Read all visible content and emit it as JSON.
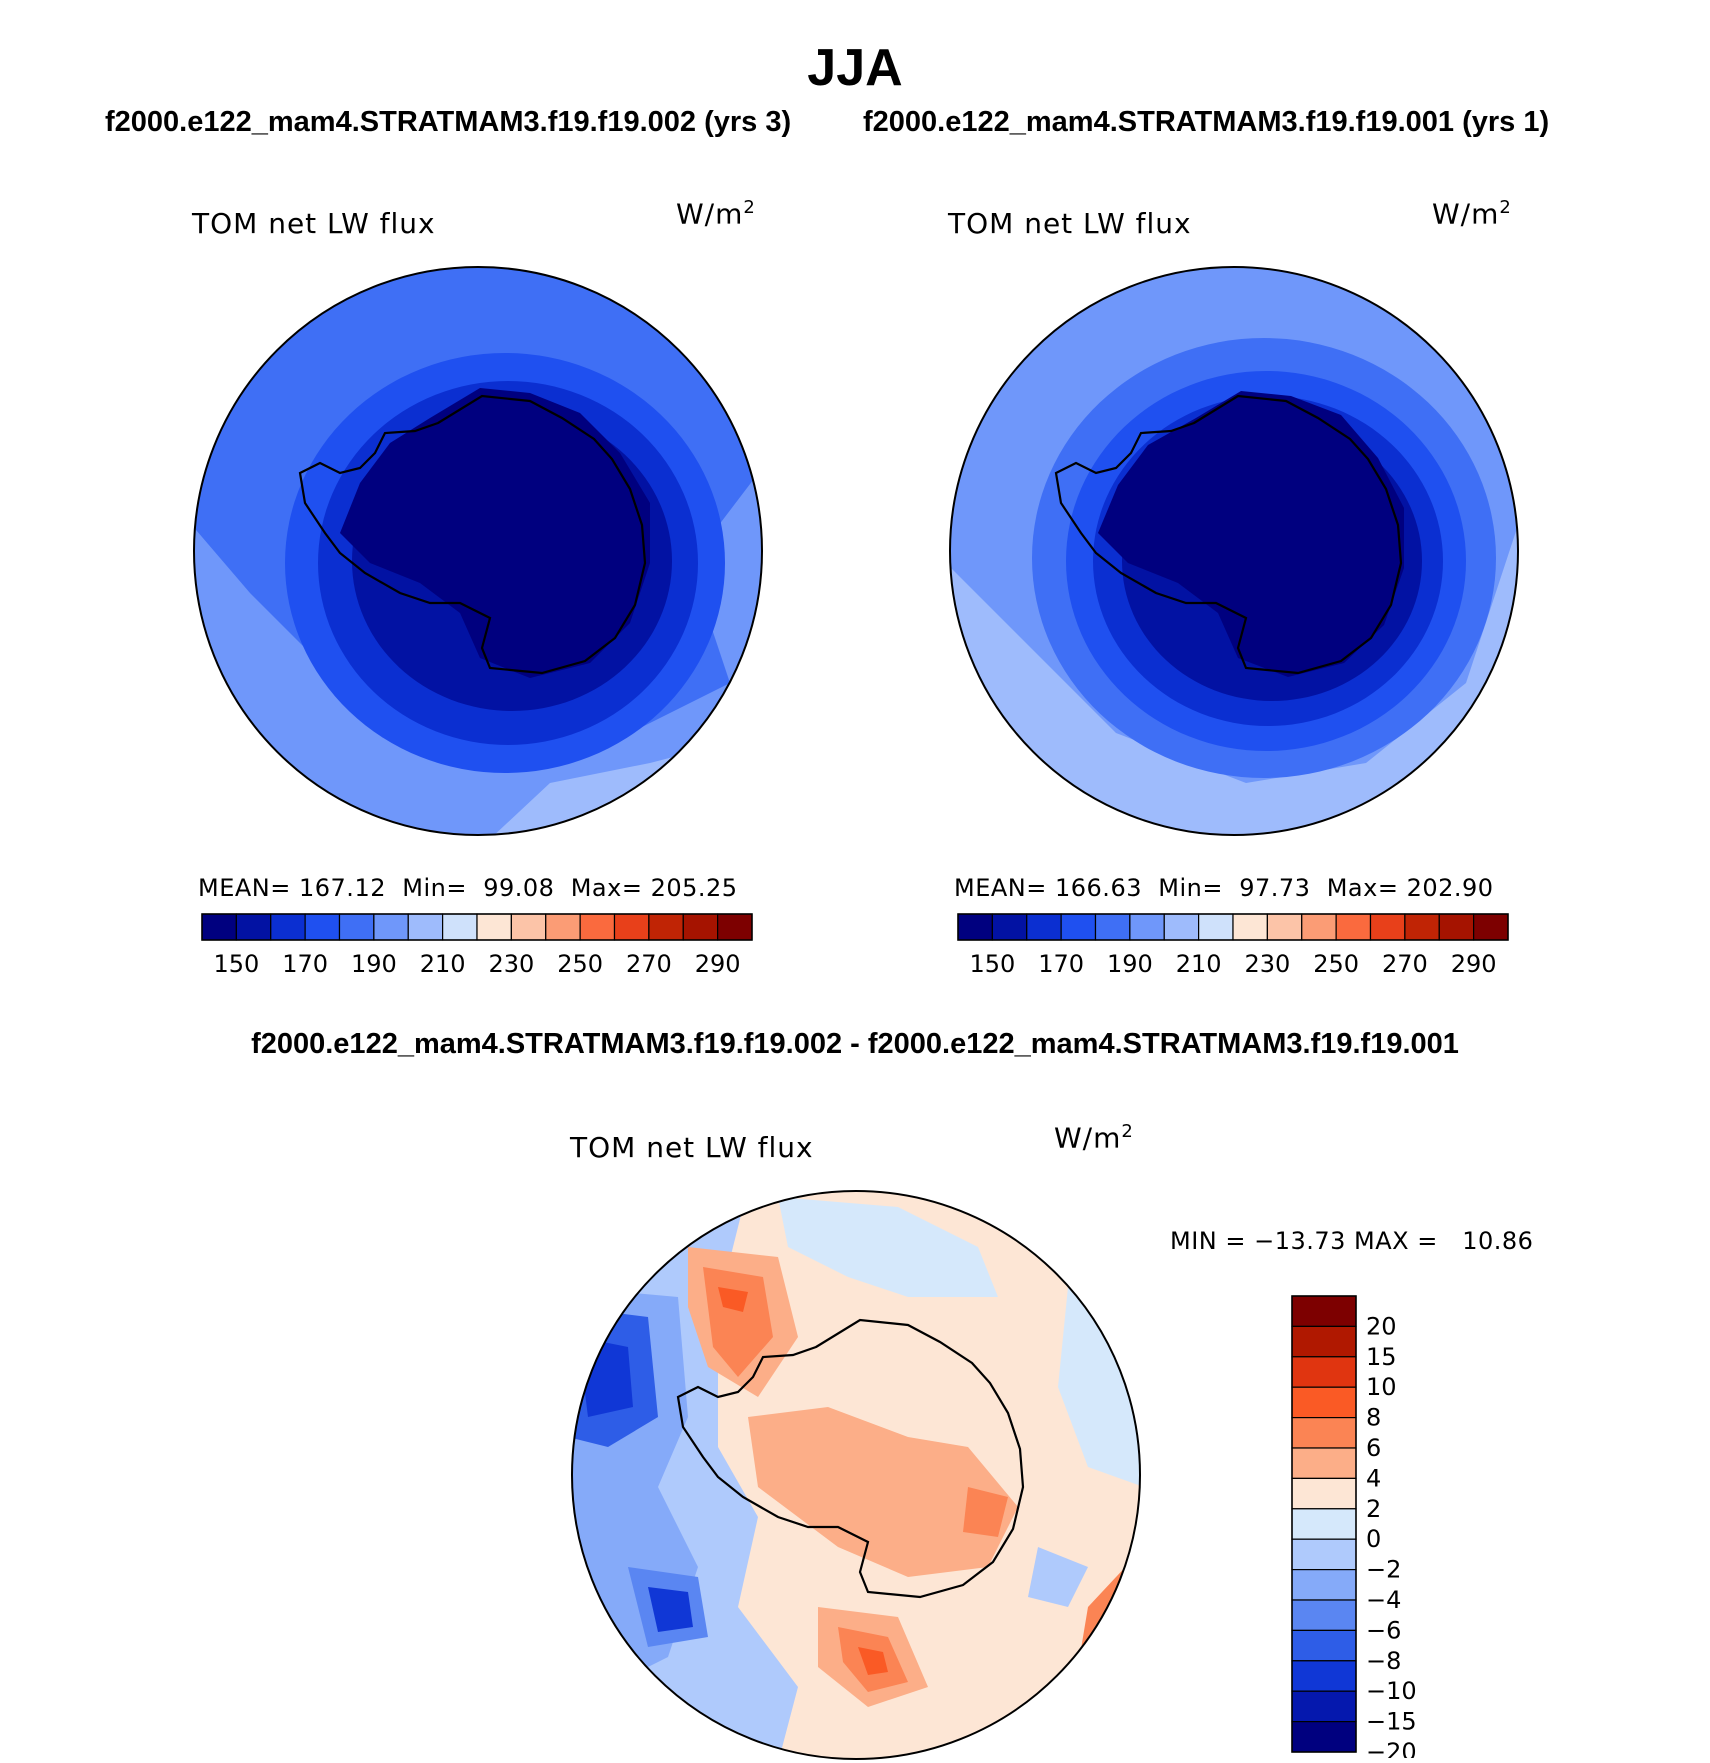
{
  "season": "JJA",
  "case_titles": {
    "left": "f2000.e122_mam4.STRATMAM3.f19.f19.002 (yrs 3)",
    "right": "f2000.e122_mam4.STRATMAM3.f19.f19.001 (yrs 1)"
  },
  "diff_title": "f2000.e122_mam4.STRATMAM3.f19.f19.002 - f2000.e122_mam4.STRATMAM3.f19.f19.001",
  "chart_data": [
    {
      "type": "heatmap",
      "projection": "south polar stereographic",
      "title": "TOM net LW flux",
      "units": "W/m",
      "units_superscript": "2",
      "stats": {
        "mean_label": "MEAN=",
        "mean": "167.12",
        "min_label": "Min=",
        "min": "99.08",
        "max_label": "Max=",
        "max": "205.25"
      },
      "colorbar": {
        "levels": [
          150,
          160,
          170,
          180,
          190,
          200,
          210,
          220,
          230,
          240,
          250,
          260,
          270,
          280,
          290
        ],
        "tick_labels": [
          "150",
          "170",
          "190",
          "210",
          "230",
          "250",
          "270",
          "290"
        ],
        "colors": [
          "#00007f",
          "#0212a3",
          "#0b2fd1",
          "#1f50f0",
          "#3f6ff5",
          "#6f97fa",
          "#9ebbfc",
          "#cfe1fb",
          "#fde6d5",
          "#fcc4a8",
          "#fb9c75",
          "#fa6a3e",
          "#e8401a",
          "#c02405",
          "#a51300",
          "#7d0000"
        ]
      }
    },
    {
      "type": "heatmap",
      "projection": "south polar stereographic",
      "title": "TOM net LW flux",
      "units": "W/m",
      "units_superscript": "2",
      "stats": {
        "mean_label": "MEAN=",
        "mean": "166.63",
        "min_label": "Min=",
        "min": "97.73",
        "max_label": "Max=",
        "max": "202.90"
      },
      "colorbar": {
        "levels": [
          150,
          160,
          170,
          180,
          190,
          200,
          210,
          220,
          230,
          240,
          250,
          260,
          270,
          280,
          290
        ],
        "tick_labels": [
          "150",
          "170",
          "190",
          "210",
          "230",
          "250",
          "270",
          "290"
        ],
        "colors": [
          "#00007f",
          "#0212a3",
          "#0b2fd1",
          "#1f50f0",
          "#3f6ff5",
          "#6f97fa",
          "#9ebbfc",
          "#cfe1fb",
          "#fde6d5",
          "#fcc4a8",
          "#fb9c75",
          "#fa6a3e",
          "#e8401a",
          "#c02405",
          "#a51300",
          "#7d0000"
        ]
      }
    },
    {
      "type": "heatmap",
      "projection": "south polar stereographic",
      "title": "TOM net LW flux",
      "units": "W/m",
      "units_superscript": "2",
      "stats": {
        "minmax_text": "MIN = −13.73 MAX =   10.86"
      },
      "colorbar": {
        "orientation": "vertical",
        "tick_labels": [
          "20",
          "15",
          "10",
          "8",
          "6",
          "4",
          "2",
          "0",
          "−2",
          "−4",
          "−6",
          "−8",
          "−10",
          "−15",
          "−20"
        ],
        "colors": [
          "#7d0000",
          "#b01800",
          "#e03510",
          "#fa5a25",
          "#fb8454",
          "#fcae88",
          "#fde6d5",
          "#d5e8fb",
          "#afcafc",
          "#85aaf9",
          "#5a86f2",
          "#2e5de7",
          "#1037d6",
          "#0518ae",
          "#00007f"
        ]
      }
    }
  ]
}
